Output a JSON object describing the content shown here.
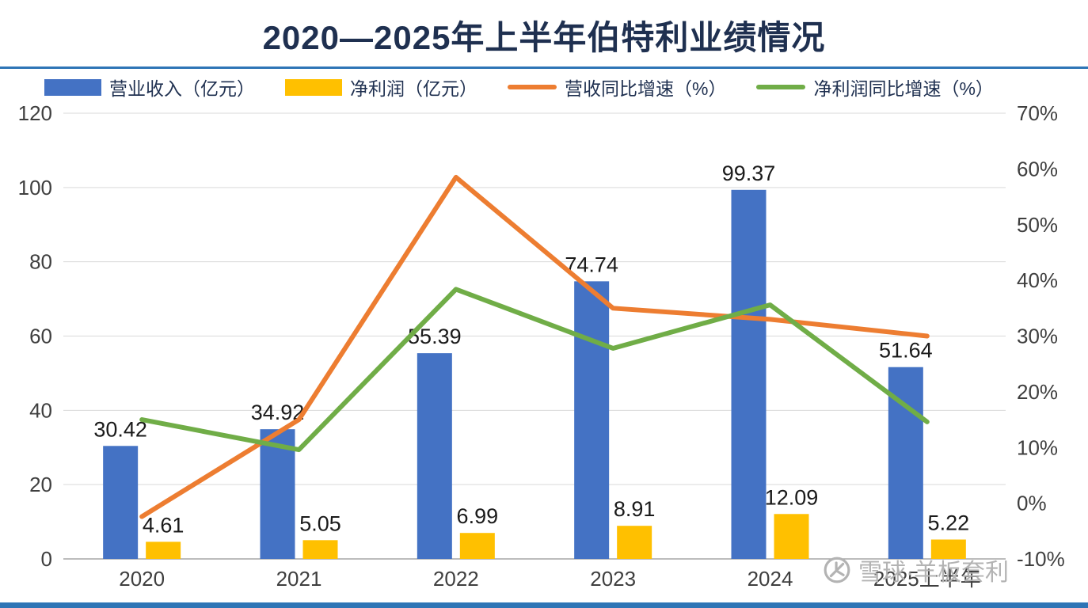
{
  "title": "2020—2025年上半年伯特利业绩情况",
  "colors": {
    "accent": "#2e75b6",
    "title": "#1f3050",
    "bar_blue": "#4472c4",
    "bar_yellow": "#ffc000",
    "line_orange": "#ed7d31",
    "line_green": "#70ad47",
    "axis_text": "#3f3f3f",
    "gridline": "#d9d9d9",
    "watermark_gray": "#b3b3b3"
  },
  "watermark": {
    "icon": "xueqiu-snowball-logo",
    "text": "雪球·羊板套利"
  },
  "chart_data": {
    "type": "combo-bar-line",
    "title": "2020—2025年上半年伯特利业绩情况",
    "grid": true,
    "legend_position": "top",
    "categories": [
      "2020",
      "2021",
      "2022",
      "2023",
      "2024",
      "2025上半年"
    ],
    "left_axis": {
      "min": 0,
      "max": 120,
      "tick_labels": [
        "0",
        "20",
        "40",
        "60",
        "80",
        "100",
        "120"
      ]
    },
    "right_axis": {
      "min": -10,
      "max": 70,
      "tick_labels": [
        "-10%",
        "0%",
        "10%",
        "20%",
        "30%",
        "40%",
        "50%",
        "60%",
        "70%"
      ]
    },
    "series": [
      {
        "key": "revenue",
        "name": "营业收入（亿元）",
        "type": "bar",
        "axis": "left",
        "color": "#4472c4",
        "values": [
          30.42,
          34.92,
          55.39,
          74.74,
          99.37,
          51.64
        ]
      },
      {
        "key": "net-profit",
        "name": "净利润（亿元）",
        "type": "bar",
        "axis": "left",
        "color": "#ffc000",
        "values": [
          4.61,
          5.05,
          6.99,
          8.91,
          12.09,
          5.22
        ]
      },
      {
        "key": "revenue-growth",
        "name": "营收同比增速（%）",
        "type": "line",
        "axis": "right",
        "color": "#ed7d31",
        "values": [
          -2.4,
          15.0,
          58.5,
          35.0,
          33.0,
          30.0
        ]
      },
      {
        "key": "net-profit-growth",
        "name": "净利润同比增速（%）",
        "type": "line",
        "axis": "right",
        "color": "#70ad47",
        "values": [
          15.0,
          9.6,
          38.4,
          27.8,
          35.6,
          14.6
        ]
      }
    ]
  }
}
